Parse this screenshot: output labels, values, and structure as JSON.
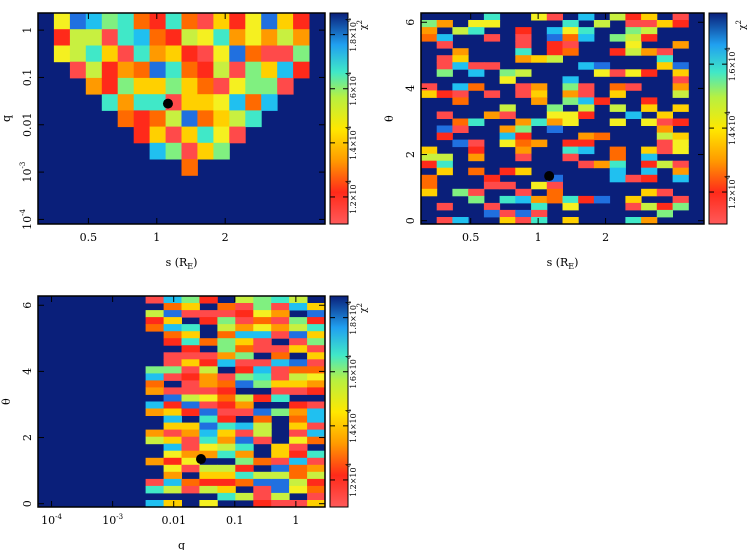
{
  "chart_data": [
    {
      "id": "s-q",
      "type": "heatmap",
      "title": "",
      "xlabel": "s (R",
      "xlabel_sub": "E",
      "xlabel_close": ")",
      "ylabel": "q",
      "x_scale": "log",
      "y_scale": "log",
      "xlim": [
        0.3,
        5.5
      ],
      "ylim": [
        8e-05,
        2.3
      ],
      "x_ticks": [
        {
          "v": 0.5,
          "label": "0.5"
        },
        {
          "v": 1,
          "label": "1"
        },
        {
          "v": 2,
          "label": "2"
        }
      ],
      "y_ticks": [
        {
          "v": 1,
          "label": "1"
        },
        {
          "v": 0.1,
          "label": "0.1"
        },
        {
          "v": 0.01,
          "label": "0.01"
        },
        {
          "v": 0.001,
          "label": "10^-3"
        },
        {
          "v": 0.0001,
          "label": "10^-4"
        }
      ],
      "best_fit": {
        "x": 1.12,
        "y": 0.028
      },
      "colorbar": {
        "label": "χ",
        "label_sup": "2",
        "ticks": [
          {
            "v": 12000,
            "label": "1.2×10^4"
          },
          {
            "v": 14000,
            "label": "1.4×10^4"
          },
          {
            "v": 16000,
            "label": "1.6×10^4"
          },
          {
            "v": 18000,
            "label": "1.8×10^4"
          }
        ],
        "range": [
          11000,
          18800
        ]
      },
      "background": "#0a1f7a"
    },
    {
      "id": "s-theta",
      "type": "heatmap",
      "title": "",
      "xlabel": "s (R",
      "xlabel_sub": "E",
      "xlabel_close": ")",
      "ylabel": "θ",
      "x_scale": "log",
      "y_scale": "linear",
      "xlim": [
        0.3,
        5.5
      ],
      "ylim": [
        -0.1,
        6.28
      ],
      "x_ticks": [
        {
          "v": 0.5,
          "label": "0.5"
        },
        {
          "v": 1,
          "label": "1"
        },
        {
          "v": 2,
          "label": "2"
        }
      ],
      "y_ticks": [
        {
          "v": 0,
          "label": "0"
        },
        {
          "v": 2,
          "label": "2"
        },
        {
          "v": 4,
          "label": "4"
        },
        {
          "v": 6,
          "label": "6"
        }
      ],
      "best_fit": {
        "x": 1.12,
        "y": 1.35
      },
      "colorbar": {
        "label": "χ",
        "label_sup": "2",
        "ticks": [
          {
            "v": 12000,
            "label": "1.2×10^4"
          },
          {
            "v": 14000,
            "label": "1.4×10^4"
          },
          {
            "v": 16000,
            "label": "1.6×10^4"
          }
        ],
        "range": [
          11000,
          17600
        ]
      },
      "background": "#0a1f7a"
    },
    {
      "id": "q-theta",
      "type": "heatmap",
      "title": "",
      "xlabel": "q",
      "ylabel": "θ",
      "x_scale": "log",
      "y_scale": "linear",
      "xlim": [
        6e-05,
        3
      ],
      "ylim": [
        -0.1,
        6.28
      ],
      "x_ticks": [
        {
          "v": 0.0001,
          "label": "10^-4"
        },
        {
          "v": 0.001,
          "label": "10^-3"
        },
        {
          "v": 0.01,
          "label": "0.01"
        },
        {
          "v": 0.1,
          "label": "0.1"
        },
        {
          "v": 1,
          "label": "1"
        }
      ],
      "y_ticks": [
        {
          "v": 0,
          "label": "0"
        },
        {
          "v": 2,
          "label": "2"
        },
        {
          "v": 4,
          "label": "4"
        },
        {
          "v": 6,
          "label": "6"
        }
      ],
      "best_fit": {
        "x": 0.028,
        "y": 1.35
      },
      "colorbar": {
        "label": "χ",
        "label_sup": "2",
        "ticks": [
          {
            "v": 12000,
            "label": "1.2×10^4"
          },
          {
            "v": 14000,
            "label": "1.4×10^4"
          },
          {
            "v": 16000,
            "label": "1.6×10^4"
          },
          {
            "v": 18000,
            "label": "1.8×10^4"
          }
        ],
        "range": [
          11000,
          18800
        ]
      },
      "background": "#0a1f7a"
    }
  ]
}
